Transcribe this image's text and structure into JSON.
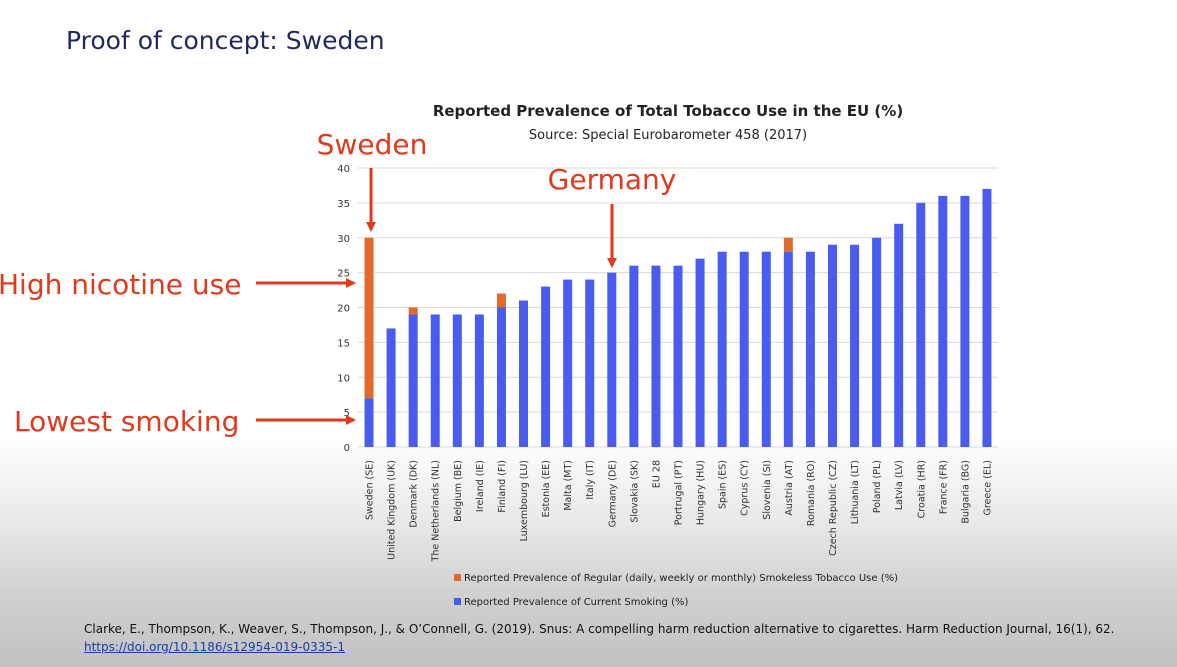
{
  "slide": {
    "title": "Proof of concept: Sweden"
  },
  "colors": {
    "smoking": "#4a5cf0",
    "smokeless": "#e06a2c",
    "annotation": "#e03a1e"
  },
  "chart_data": {
    "type": "bar",
    "stacked": true,
    "title": "Reported Prevalence of Total Tobacco Use in the EU (%)",
    "subtitle": "Source: Special Eurobarometer 458 (2017)",
    "xlabel": "",
    "ylabel": "",
    "ylim": [
      0,
      40
    ],
    "yticks": [
      0,
      5,
      10,
      15,
      20,
      25,
      30,
      35,
      40
    ],
    "grid": true,
    "legend_position": "bottom",
    "categories": [
      "Sweden (SE)",
      "United Kingdom (UK)",
      "Denmark (DK)",
      "The Netherlands (NL)",
      "Belgium (BE)",
      "Ireland (IE)",
      "Finland (FI)",
      "Luxembourg (LU)",
      "Estonia (EE)",
      "Malta (MT)",
      "Italy (IT)",
      "Germany (DE)",
      "Slovakia (SK)",
      "EU 28",
      "Portrugal (PT)",
      "Hungary (HU)",
      "Spain (ES)",
      "Cyprus (CY)",
      "Slovenia (SI)",
      "Austria (AT)",
      "Romania (RO)",
      "Czech Republic (CZ)",
      "Lithuania (LT)",
      "Poland (PL)",
      "Latvia (LV)",
      "Croatia (HR)",
      "France (FR)",
      "Bulgaria (BG)",
      "Greece (EL)"
    ],
    "series": [
      {
        "name": "Reported Prevalence of Current Smoking (%)",
        "values": [
          7,
          17,
          19,
          19,
          19,
          19,
          20,
          21,
          23,
          24,
          24,
          25,
          26,
          26,
          26,
          27,
          28,
          28,
          28,
          28,
          28,
          29,
          29,
          30,
          32,
          35,
          36,
          36,
          37
        ]
      },
      {
        "name": "Reported Prevalence of Regular (daily, weekly or monthly) Smokeless Tobacco Use (%)",
        "values": [
          23,
          0,
          1,
          0,
          0,
          0,
          2,
          0,
          0,
          0,
          0,
          0,
          0,
          0,
          0,
          0,
          0,
          0,
          0,
          2,
          0,
          0,
          0,
          0,
          0,
          0,
          0,
          0,
          0
        ]
      }
    ],
    "annotations": [
      "Sweden",
      "Germany",
      "High nicotine use",
      "Lowest smoking"
    ]
  },
  "citation": {
    "text": "Clarke, E., Thompson, K., Weaver, S., Thompson, J., & O’Connell, G. (2019). Snus: A compelling harm reduction alternative to cigarettes. Harm Reduction Journal, 16(1), 62.",
    "link": "https://doi.org/10.1186/s12954-019-0335-1"
  }
}
